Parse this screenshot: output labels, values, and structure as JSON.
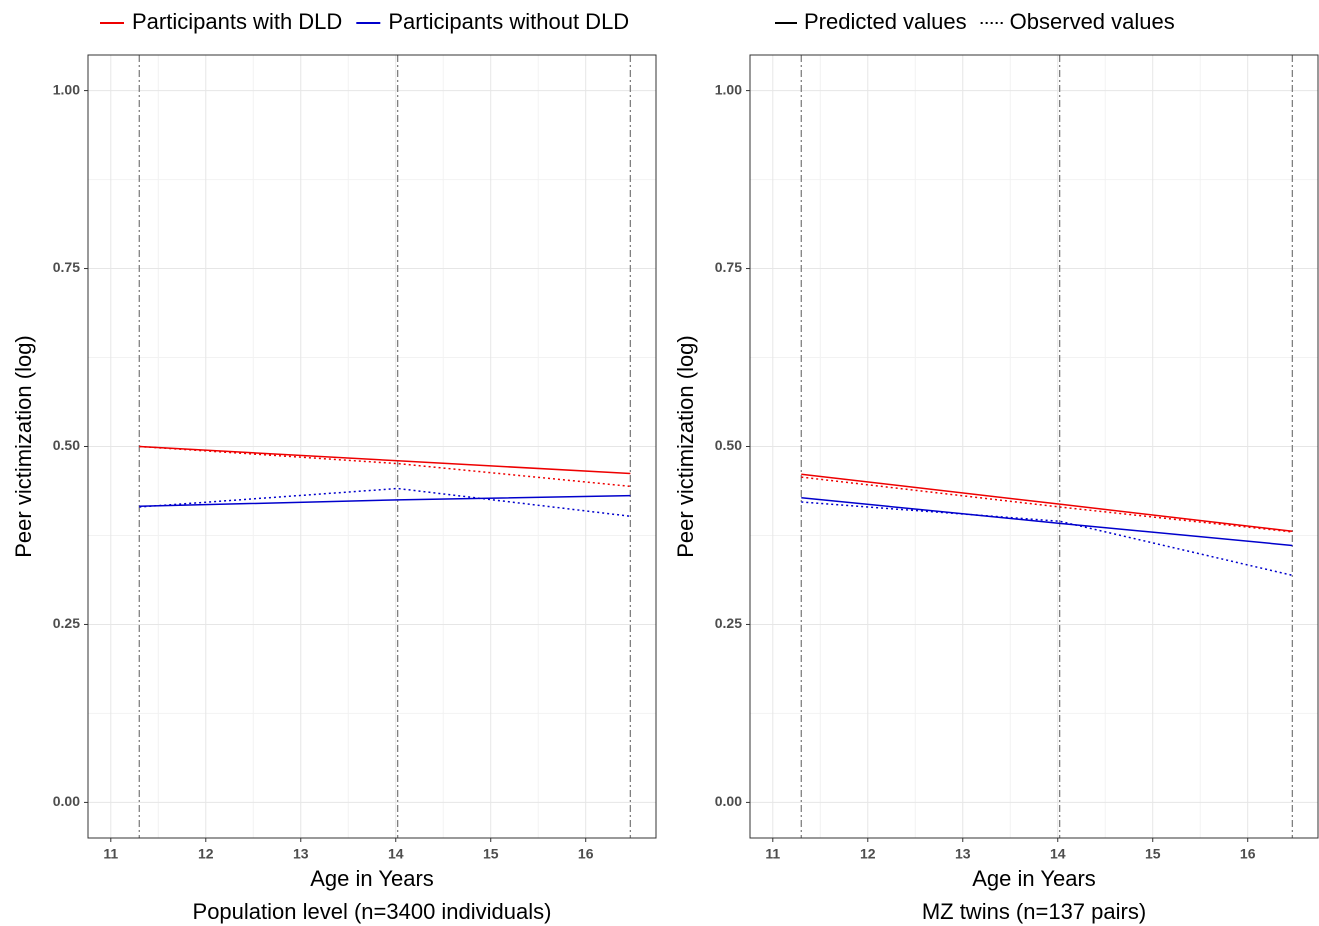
{
  "legend": {
    "groups": [
      {
        "label": "Participants with DLD",
        "color": "#ee0000"
      },
      {
        "label": "Participants without DLD",
        "color": "#0000cc"
      }
    ],
    "linetypes": [
      {
        "label": "Predicted values",
        "dash": "none"
      },
      {
        "label": "Observed values",
        "dash": "2 3"
      }
    ]
  },
  "chart_data": [
    {
      "type": "line",
      "xlabel": "Age in Years",
      "ylabel": "Peer victimization (log)",
      "caption": "Population level (n=3400 individuals)",
      "x": [
        11.3,
        14.02,
        16.47
      ],
      "xlim": [
        10.76,
        16.74
      ],
      "xticks": [
        11,
        12,
        13,
        14,
        15,
        16
      ],
      "ylim": [
        -0.05,
        1.05
      ],
      "yticks": [
        {
          "value": 0,
          "label": "0.00"
        },
        {
          "value": 0.25,
          "label": "0.25"
        },
        {
          "value": 0.5,
          "label": "0.50"
        },
        {
          "value": 0.75,
          "label": "0.75"
        },
        {
          "value": 1,
          "label": "1.00"
        }
      ],
      "grid": true,
      "minor_grid": true,
      "x_reference_lines": true,
      "series": [
        {
          "color": "#ee0000",
          "dash": "none",
          "values": [
            0.5,
            0.48,
            0.462
          ]
        },
        {
          "color": "#ee0000",
          "dash": "2 3",
          "values": [
            0.5,
            0.476,
            0.444
          ]
        },
        {
          "color": "#0000cc",
          "dash": "none",
          "values": [
            0.416,
            0.425,
            0.431
          ]
        },
        {
          "color": "#0000cc",
          "dash": "2 3",
          "values": [
            0.415,
            0.441,
            0.402
          ]
        }
      ]
    },
    {
      "type": "line",
      "xlabel": "Age in Years",
      "ylabel": "Peer victimization (log)",
      "caption": "MZ twins (n=137 pairs)",
      "x": [
        11.3,
        14.02,
        16.47
      ],
      "xlim": [
        10.76,
        16.74
      ],
      "xticks": [
        11,
        12,
        13,
        14,
        15,
        16
      ],
      "ylim": [
        -0.05,
        1.05
      ],
      "yticks": [
        {
          "value": 0,
          "label": "0.00"
        },
        {
          "value": 0.25,
          "label": "0.25"
        },
        {
          "value": 0.5,
          "label": "0.50"
        },
        {
          "value": 0.75,
          "label": "0.75"
        },
        {
          "value": 1,
          "label": "1.00"
        }
      ],
      "grid": true,
      "minor_grid": true,
      "x_reference_lines": true,
      "series": [
        {
          "color": "#ee0000",
          "dash": "none",
          "values": [
            0.461,
            0.419,
            0.381
          ]
        },
        {
          "color": "#ee0000",
          "dash": "2 3",
          "values": [
            0.457,
            0.415,
            0.38
          ]
        },
        {
          "color": "#0000cc",
          "dash": "none",
          "values": [
            0.428,
            0.392,
            0.361
          ]
        },
        {
          "color": "#0000cc",
          "dash": "2 3",
          "values": [
            0.422,
            0.395,
            0.319
          ]
        }
      ]
    }
  ]
}
